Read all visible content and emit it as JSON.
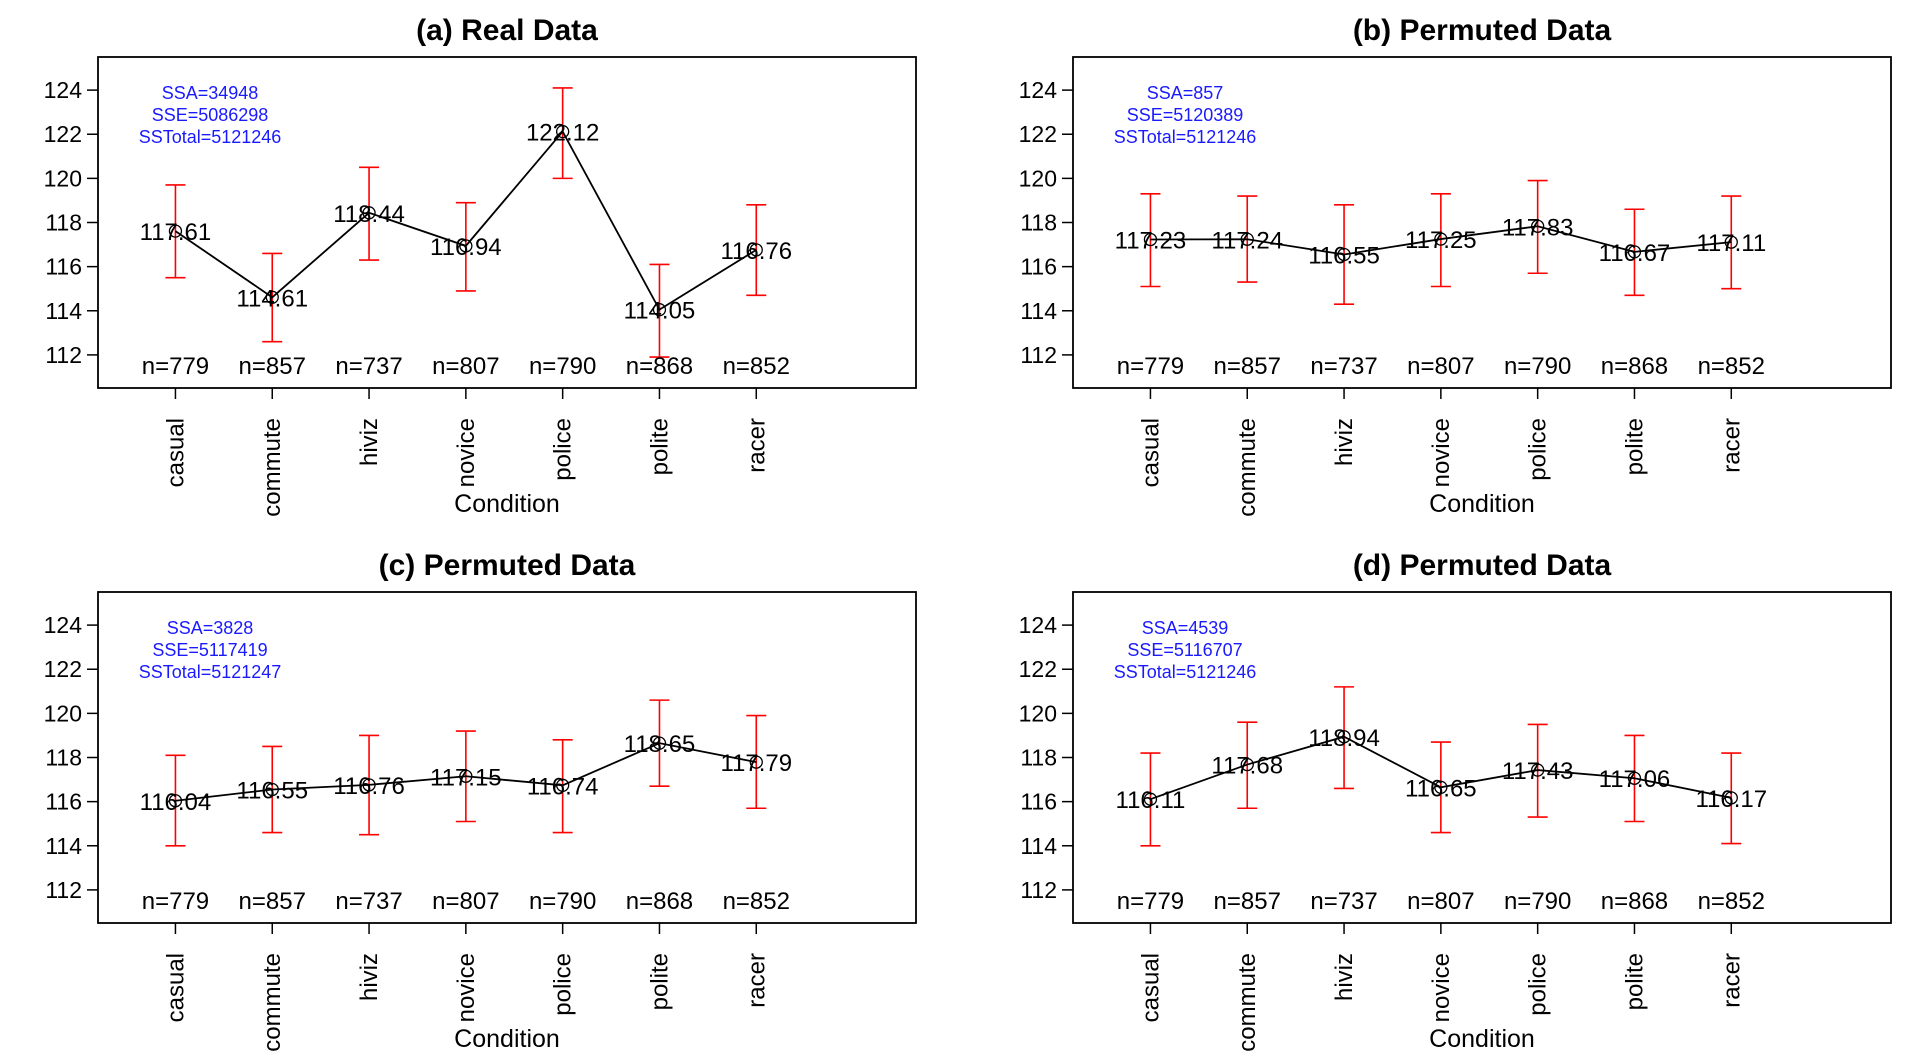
{
  "colors": {
    "error_bar": "#ff0000",
    "stats_text": "#1a1aff",
    "line": "#000000"
  },
  "chart_data": [
    {
      "type": "line",
      "title": "(a) Real Data",
      "xlabel": "Condition",
      "ylabel": "",
      "ylim": [
        110.5,
        125.5
      ],
      "yticks": [
        "112",
        "114",
        "116",
        "118",
        "120",
        "122",
        "124"
      ],
      "categories": [
        "casual",
        "commute",
        "hiviz",
        "novice",
        "police",
        "polite",
        "racer"
      ],
      "values": [
        117.61,
        114.61,
        118.44,
        116.94,
        122.12,
        114.05,
        116.76
      ],
      "labels": [
        "117.61",
        "114.61",
        "118.44",
        "116.94",
        "122.12",
        "114.05",
        "116.76"
      ],
      "lower": [
        115.5,
        112.6,
        116.3,
        114.9,
        120.0,
        111.9,
        114.7
      ],
      "upper": [
        119.7,
        116.6,
        120.5,
        118.9,
        124.1,
        116.1,
        118.8
      ],
      "n_labels": [
        "n=779",
        "n=857",
        "n=737",
        "n=807",
        "n=790",
        "n=868",
        "n=852"
      ],
      "stats": [
        "SSA=34948",
        "SSE=5086298",
        "SSTotal=5121246"
      ],
      "grid": false
    },
    {
      "type": "line",
      "title": "(b) Permuted Data",
      "xlabel": "Condition",
      "ylabel": "",
      "ylim": [
        110.5,
        125.5
      ],
      "yticks": [
        "112",
        "114",
        "116",
        "118",
        "120",
        "122",
        "124"
      ],
      "categories": [
        "casual",
        "commute",
        "hiviz",
        "novice",
        "police",
        "polite",
        "racer"
      ],
      "values": [
        117.23,
        117.24,
        116.55,
        117.25,
        117.83,
        116.67,
        117.11
      ],
      "labels": [
        "117.23",
        "117.24",
        "116.55",
        "117.25",
        "117.83",
        "116.67",
        "117.11"
      ],
      "lower": [
        115.1,
        115.3,
        114.3,
        115.1,
        115.7,
        114.7,
        115.0
      ],
      "upper": [
        119.3,
        119.2,
        118.8,
        119.3,
        119.9,
        118.6,
        119.2
      ],
      "n_labels": [
        "n=779",
        "n=857",
        "n=737",
        "n=807",
        "n=790",
        "n=868",
        "n=852"
      ],
      "stats": [
        "SSA=857",
        "SSE=5120389",
        "SSTotal=5121246"
      ],
      "grid": false
    },
    {
      "type": "line",
      "title": "(c) Permuted Data",
      "xlabel": "Condition",
      "ylabel": "",
      "ylim": [
        110.5,
        125.5
      ],
      "yticks": [
        "112",
        "114",
        "116",
        "118",
        "120",
        "122",
        "124"
      ],
      "categories": [
        "casual",
        "commute",
        "hiviz",
        "novice",
        "police",
        "polite",
        "racer"
      ],
      "values": [
        116.04,
        116.55,
        116.76,
        117.15,
        116.74,
        118.65,
        117.79
      ],
      "labels": [
        "116.04",
        "116.55",
        "116.76",
        "117.15",
        "116.74",
        "118.65",
        "117.79"
      ],
      "lower": [
        114.0,
        114.6,
        114.5,
        115.1,
        114.6,
        116.7,
        115.7
      ],
      "upper": [
        118.1,
        118.5,
        119.0,
        119.2,
        118.8,
        120.6,
        119.9
      ],
      "n_labels": [
        "n=779",
        "n=857",
        "n=737",
        "n=807",
        "n=790",
        "n=868",
        "n=852"
      ],
      "stats": [
        "SSA=3828",
        "SSE=5117419",
        "SSTotal=5121247"
      ],
      "grid": false
    },
    {
      "type": "line",
      "title": "(d) Permuted Data",
      "xlabel": "Condition",
      "ylabel": "",
      "ylim": [
        110.5,
        125.5
      ],
      "yticks": [
        "112",
        "114",
        "116",
        "118",
        "120",
        "122",
        "124"
      ],
      "categories": [
        "casual",
        "commute",
        "hiviz",
        "novice",
        "police",
        "polite",
        "racer"
      ],
      "values": [
        116.11,
        117.68,
        118.94,
        116.65,
        117.43,
        117.06,
        116.17
      ],
      "labels": [
        "116.11",
        "117.68",
        "118.94",
        "116.65",
        "117.43",
        "117.06",
        "116.17"
      ],
      "lower": [
        114.0,
        115.7,
        116.6,
        114.6,
        115.3,
        115.1,
        114.1
      ],
      "upper": [
        118.2,
        119.6,
        121.2,
        118.7,
        119.5,
        119.0,
        118.2
      ],
      "n_labels": [
        "n=779",
        "n=857",
        "n=737",
        "n=807",
        "n=790",
        "n=868",
        "n=852"
      ],
      "stats": [
        "SSA=4539",
        "SSE=5116707",
        "SSTotal=5121246"
      ],
      "grid": false
    }
  ]
}
